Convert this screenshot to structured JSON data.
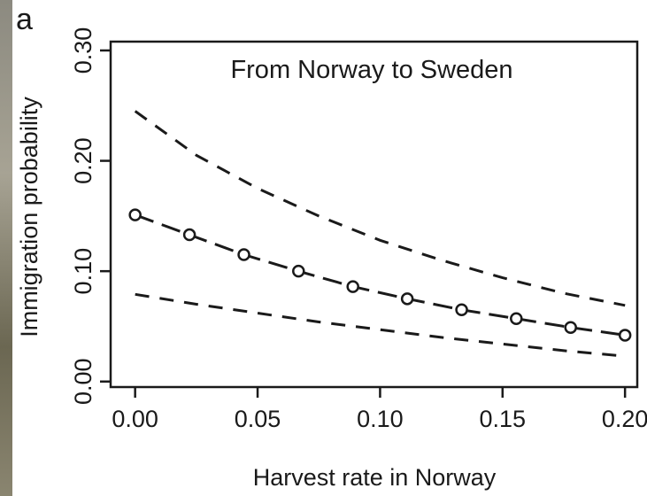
{
  "panel_label": "a",
  "chart_data": {
    "type": "line",
    "title": "From Norway to Sweden",
    "xlabel": "Harvest rate in Norway",
    "ylabel": "Immigration probability",
    "xlim": [
      -0.01,
      0.205
    ],
    "ylim": [
      -0.005,
      0.308
    ],
    "xticks": [
      0.0,
      0.05,
      0.1,
      0.15,
      0.2
    ],
    "xtick_labels": [
      "0.00",
      "0.05",
      "0.10",
      "0.15",
      "0.20"
    ],
    "yticks": [
      0.0,
      0.1,
      0.2,
      0.3
    ],
    "ytick_labels": [
      "0.00",
      "0.10",
      "0.20",
      "0.30"
    ],
    "grid": false,
    "series": [
      {
        "role": "estimate",
        "line_style": "long-dash",
        "marker": "open-circle",
        "x": [
          0.0,
          0.0222,
          0.0444,
          0.0667,
          0.0889,
          0.1111,
          0.1333,
          0.1556,
          0.1778,
          0.2
        ],
        "y": [
          0.151,
          0.133,
          0.115,
          0.1,
          0.086,
          0.075,
          0.065,
          0.057,
          0.049,
          0.042
        ]
      },
      {
        "role": "upper",
        "line_style": "dashed",
        "x": [
          0.0,
          0.025,
          0.05,
          0.075,
          0.1,
          0.125,
          0.15,
          0.175,
          0.2
        ],
        "y": [
          0.245,
          0.205,
          0.175,
          0.15,
          0.128,
          0.11,
          0.094,
          0.08,
          0.069
        ]
      },
      {
        "role": "lower",
        "line_style": "dashed",
        "x": [
          0.0,
          0.025,
          0.05,
          0.075,
          0.1,
          0.125,
          0.15,
          0.175,
          0.2
        ],
        "y": [
          0.079,
          0.07,
          0.062,
          0.054,
          0.047,
          0.04,
          0.034,
          0.028,
          0.023
        ]
      }
    ]
  }
}
